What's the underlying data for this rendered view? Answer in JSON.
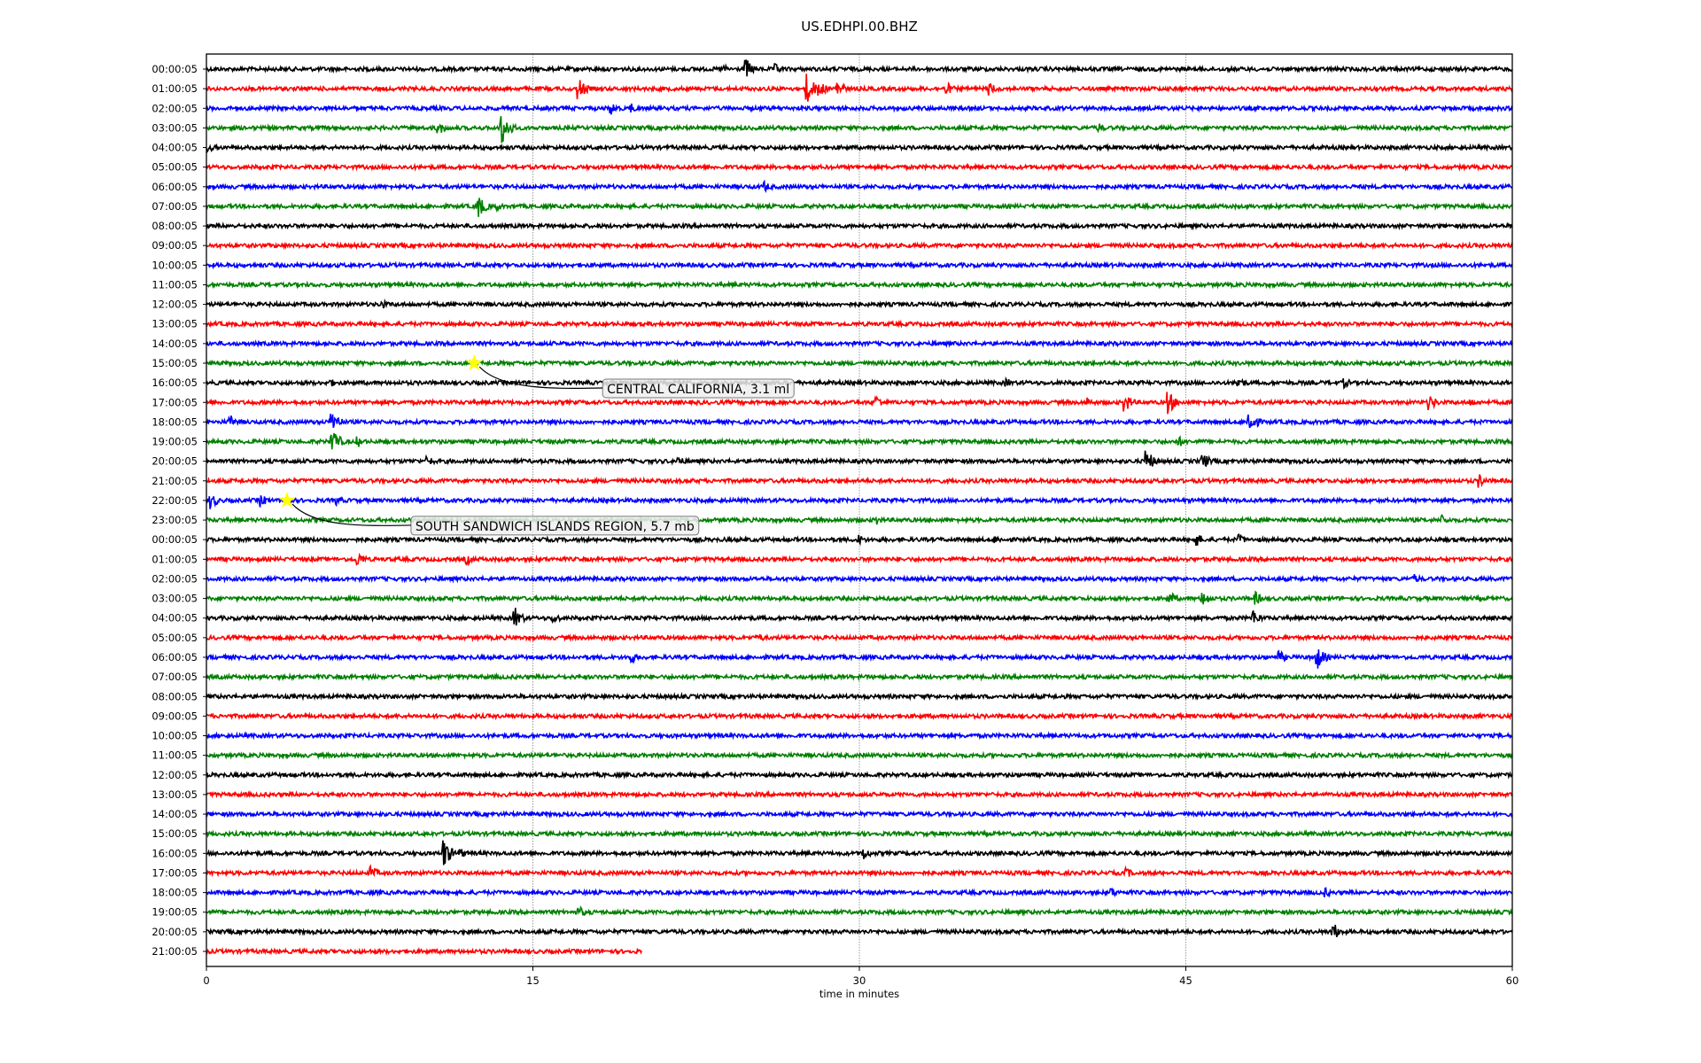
{
  "chart_data": {
    "type": "line",
    "title": "US.EDHPI.00.BHZ",
    "xlabel": "time in minutes",
    "xlim": [
      0,
      60
    ],
    "xticks": [
      0,
      15,
      30,
      45,
      60
    ],
    "grid": "vertical dotted at x ticks",
    "colors": [
      "#000000",
      "#ff0000",
      "#0000ff",
      "#008000"
    ],
    "row_labels": [
      "00:00:05",
      "01:00:05",
      "02:00:05",
      "03:00:05",
      "04:00:05",
      "05:00:05",
      "06:00:05",
      "07:00:05",
      "08:00:05",
      "09:00:05",
      "10:00:05",
      "11:00:05",
      "12:00:05",
      "13:00:05",
      "14:00:05",
      "15:00:05",
      "16:00:05",
      "17:00:05",
      "18:00:05",
      "19:00:05",
      "20:00:05",
      "21:00:05",
      "22:00:05",
      "23:00:05",
      "00:00:05",
      "01:00:05",
      "02:00:05",
      "03:00:05",
      "04:00:05",
      "05:00:05",
      "06:00:05",
      "07:00:05",
      "08:00:05",
      "09:00:05",
      "10:00:05",
      "11:00:05",
      "12:00:05",
      "13:00:05",
      "14:00:05",
      "15:00:05",
      "16:00:05",
      "17:00:05",
      "18:00:05",
      "19:00:05",
      "20:00:05",
      "21:00:05"
    ],
    "last_row_end_minute": 20,
    "events": [
      {
        "row": 15,
        "minute": 12.3,
        "label": "CENTRAL CALIFORNIA, 3.1 ml"
      },
      {
        "row": 22,
        "minute": 3.7,
        "label": "SOUTH SANDWICH ISLANDS REGION, 5.7 mb"
      }
    ],
    "bursts": [
      [
        0,
        24.8,
        12
      ],
      [
        0,
        26.2,
        6
      ],
      [
        0,
        23.8,
        5
      ],
      [
        1,
        17.1,
        14
      ],
      [
        1,
        27.6,
        18
      ],
      [
        1,
        28.1,
        12
      ],
      [
        1,
        29,
        10
      ],
      [
        1,
        34,
        8
      ],
      [
        1,
        36,
        8
      ],
      [
        2,
        18.6,
        8
      ],
      [
        2,
        19.5,
        6
      ],
      [
        3,
        13.6,
        20
      ],
      [
        3,
        10.7,
        8
      ],
      [
        3,
        41,
        6
      ],
      [
        4,
        0.1,
        6
      ],
      [
        6,
        25.7,
        6
      ],
      [
        7,
        12.5,
        14
      ],
      [
        7,
        13.3,
        6
      ],
      [
        12,
        8.1,
        5
      ],
      [
        16,
        47.4,
        8
      ],
      [
        16,
        52.3,
        6
      ],
      [
        16,
        36.8,
        5
      ],
      [
        16,
        5.7,
        5
      ],
      [
        17,
        44.2,
        14
      ],
      [
        17,
        42.2,
        12
      ],
      [
        17,
        40.5,
        6
      ],
      [
        17,
        30.8,
        8
      ],
      [
        17,
        56.2,
        10
      ],
      [
        17,
        58.1,
        5
      ],
      [
        18,
        5.8,
        14
      ],
      [
        18,
        1.1,
        8
      ],
      [
        18,
        47.9,
        16
      ],
      [
        19,
        5.8,
        16
      ],
      [
        19,
        7,
        6
      ],
      [
        19,
        44.7,
        6
      ],
      [
        20,
        43.2,
        14
      ],
      [
        20,
        45.8,
        10
      ],
      [
        20,
        10.2,
        6
      ],
      [
        20,
        21.7,
        6
      ],
      [
        21,
        58.5,
        8
      ],
      [
        22,
        0.2,
        10
      ],
      [
        22,
        2.5,
        8
      ],
      [
        22,
        6,
        6
      ],
      [
        23,
        56.8,
        6
      ],
      [
        23,
        30.8,
        6
      ],
      [
        24,
        45.5,
        8
      ],
      [
        24,
        47.5,
        6
      ],
      [
        24,
        30,
        6
      ],
      [
        24,
        36.3,
        5
      ],
      [
        25,
        7,
        8
      ],
      [
        25,
        12,
        6
      ],
      [
        26,
        55.5,
        6
      ],
      [
        27,
        45.8,
        10
      ],
      [
        27,
        44.3,
        8
      ],
      [
        27,
        48.2,
        8
      ],
      [
        28,
        14.2,
        12
      ],
      [
        28,
        16,
        6
      ],
      [
        28,
        48.1,
        10
      ],
      [
        29,
        25.4,
        5
      ],
      [
        30,
        51,
        16
      ],
      [
        30,
        49.3,
        8
      ],
      [
        30,
        19.5,
        8
      ],
      [
        40,
        10.9,
        18
      ],
      [
        40,
        30.2,
        8
      ],
      [
        40,
        11.7,
        6
      ],
      [
        41,
        7.6,
        8
      ],
      [
        41,
        42.3,
        6
      ],
      [
        42,
        41.6,
        6
      ],
      [
        42,
        51.4,
        6
      ],
      [
        43,
        17.1,
        8
      ],
      [
        44,
        51.8,
        10
      ]
    ]
  }
}
